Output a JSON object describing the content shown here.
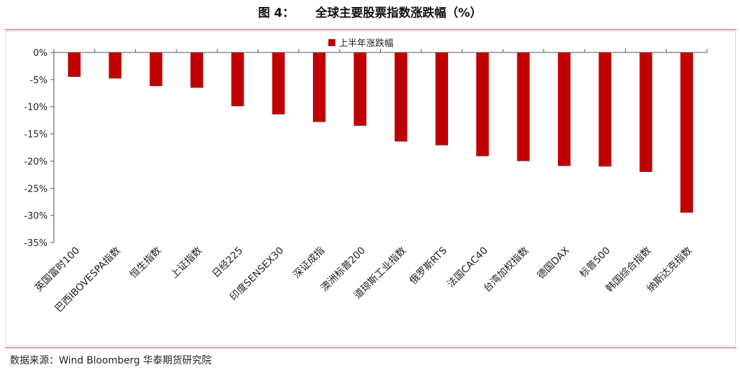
{
  "figure": {
    "label": "图 4：",
    "title": "全球主要股票指数涨跌幅（%）"
  },
  "source": "数据来源：Wind Bloomberg  华泰期货研究院",
  "colors": {
    "bar": "#c00000",
    "accent_rule": "#c0504d",
    "axis": "#555555"
  },
  "chart_data": {
    "type": "bar",
    "title": "",
    "xlabel": "",
    "ylabel": "",
    "legend_position": "top-center",
    "ylim": [
      -35,
      0
    ],
    "ytick_step": 5,
    "ytick_labels": [
      "0%",
      "-5%",
      "-10%",
      "-15%",
      "-20%",
      "-25%",
      "-30%",
      "-35%"
    ],
    "categories": [
      "英国富时100",
      "巴西IBOVESPA指数",
      "恒生指数",
      "上证指数",
      "日经225",
      "印度SENSEX30",
      "深证成指",
      "澳洲标普200",
      "道琼斯工业指数",
      "俄罗斯RTS",
      "法国CAC40",
      "台湾加权指数",
      "德国DAX",
      "标普500",
      "韩国综合指数",
      "纳斯达克指数"
    ],
    "series": [
      {
        "name": "上半年涨跌幅",
        "values": [
          -4.5,
          -4.8,
          -6.2,
          -6.5,
          -9.9,
          -11.4,
          -12.8,
          -13.5,
          -16.4,
          -17.1,
          -19.1,
          -20.0,
          -20.9,
          -21.0,
          -22.0,
          -29.5
        ]
      }
    ]
  }
}
